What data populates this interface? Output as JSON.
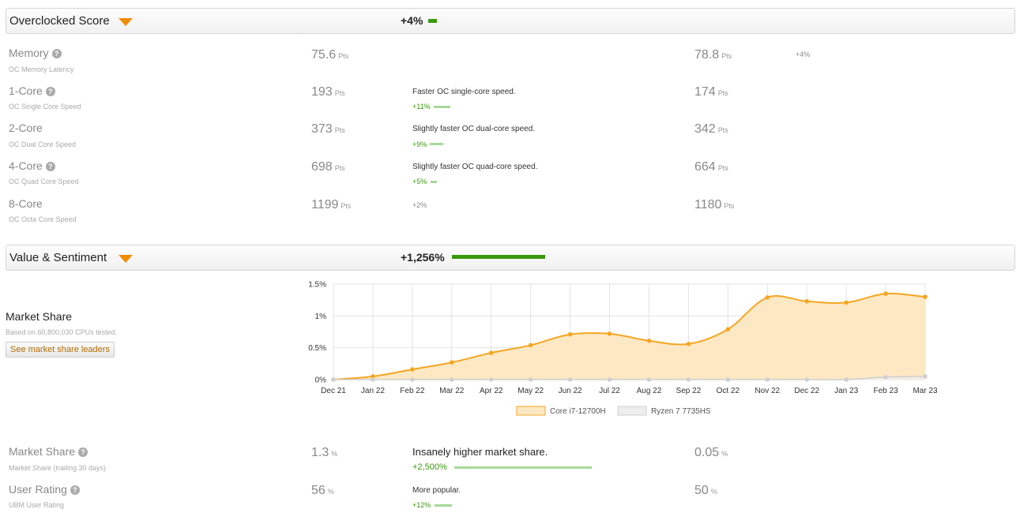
{
  "oc_section": {
    "title": "Overclocked Score",
    "delta": "+4%"
  },
  "oc_rows": [
    {
      "label": "Memory",
      "sub": "OC Memory Latency",
      "a": "75.6",
      "b": "78.8",
      "unit": "Pts",
      "desc": "",
      "pct": "+4%",
      "pct_style": "gray-right",
      "help": true
    },
    {
      "label": "1-Core",
      "sub": "OC Single Core Speed",
      "a": "193",
      "b": "174",
      "unit": "Pts",
      "desc": "Faster OC single-core speed.",
      "pct": "+11%",
      "pct_style": "green",
      "help": true
    },
    {
      "label": "2-Core",
      "sub": "OC Dual Core Speed",
      "a": "373",
      "b": "342",
      "unit": "Pts",
      "desc": "Slightly faster OC dual-core speed.",
      "pct": "+9%",
      "pct_style": "green",
      "help": false
    },
    {
      "label": "4-Core",
      "sub": "OC Quad Core Speed",
      "a": "698",
      "b": "664",
      "unit": "Pts",
      "desc": "Slightly faster OC quad-core speed.",
      "pct": "+5%",
      "pct_style": "green",
      "help": true
    },
    {
      "label": "8-Core",
      "sub": "OC Octa Core Speed",
      "a": "1199",
      "b": "1180",
      "unit": "Pts",
      "desc": "",
      "pct": "+2%",
      "pct_style": "gray-mid",
      "help": false
    }
  ],
  "vs_section": {
    "title": "Value & Sentiment",
    "delta": "+1,256%"
  },
  "market_share_block": {
    "title": "Market Share",
    "sub": "Based on 60,800,030 CPUs tested.",
    "button": "See market share leaders"
  },
  "chart_data": {
    "type": "area",
    "categories": [
      "Dec 21",
      "Jan 22",
      "Feb 22",
      "Mar 22",
      "Apr 22",
      "May 22",
      "Jun 22",
      "Jul 22",
      "Aug 22",
      "Sep 22",
      "Oct 22",
      "Nov 22",
      "Dec 22",
      "Jan 23",
      "Feb 23",
      "Mar 23"
    ],
    "y_ticks": [
      "0%",
      "0.5%",
      "1%",
      "1.5%"
    ],
    "ylim": [
      0,
      1.5
    ],
    "grid": true,
    "legend_placement": "bottom-center",
    "series": [
      {
        "name": "Core i7-12700H",
        "color": "#f5a623",
        "fill": "#fde8c4",
        "values": [
          0.0,
          0.05,
          0.16,
          0.27,
          0.42,
          0.54,
          0.71,
          0.72,
          0.61,
          0.56,
          0.79,
          1.29,
          1.23,
          1.21,
          1.35,
          1.3
        ]
      },
      {
        "name": "Ryzen 7 7735HS",
        "color": "#cfcfcf",
        "fill": "#eeeeee",
        "values": [
          0,
          0,
          0,
          0,
          0,
          0,
          0,
          0,
          0,
          0,
          0,
          0,
          0,
          0,
          0.04,
          0.05
        ]
      }
    ]
  },
  "vs_rows": [
    {
      "label": "Market Share",
      "sub": "Market Share (trailing 30 days)",
      "a": "1.3",
      "b": "0.05",
      "unit": "%",
      "desc": "Insanely higher market share.",
      "pct": "+2,500%",
      "help": true
    },
    {
      "label": "User Rating",
      "sub": "UBM User Rating",
      "a": "56",
      "b": "50",
      "unit": "%",
      "desc": "More popular.",
      "pct": "+12%",
      "help": true
    }
  ],
  "colors": {
    "accent_orange": "#f08c00",
    "bar_green": "#3a9a0d",
    "light_green": "#a6d99a"
  },
  "icons": {
    "help": "question-circle-icon",
    "dropdown": "triangle-down-icon"
  },
  "help_glyph": "?"
}
